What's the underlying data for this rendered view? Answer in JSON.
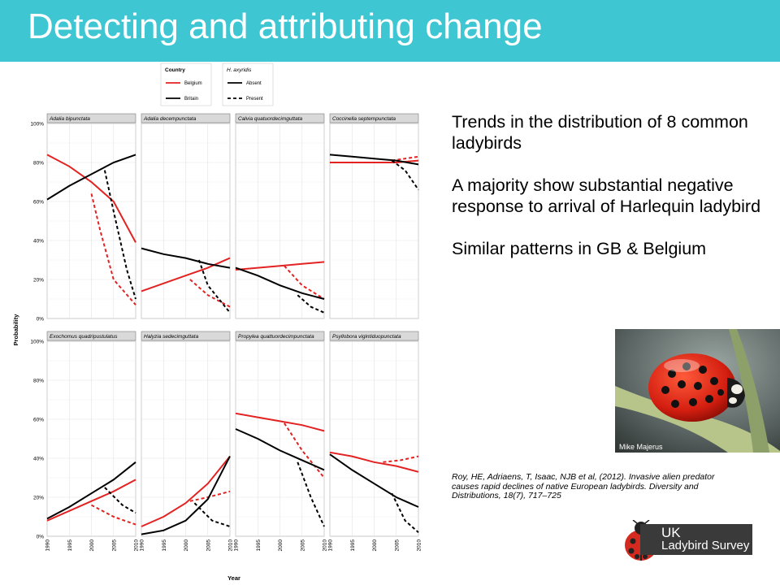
{
  "slide": {
    "title": "Detecting and attributing change"
  },
  "bullets": [
    "Trends in the distribution of 8 common ladybirds",
    "A majority show substantial negative response to arrival of Harlequin ladybird",
    "Similar patterns in GB & Belgium"
  ],
  "photo": {
    "credit": "Mike Majerus"
  },
  "citation": "Roy, HE, Adriaens, T, Isaac, NJB et al, (2012). Invasive alien predator causes rapid declines of native European ladybirds. Diversity and Distributions, 18(7), 717–725",
  "logo": {
    "line1": "UK",
    "line2": "Ladybird Survey"
  },
  "colors": {
    "title_bar": "#3fc6d3",
    "belgium": "#e32222",
    "britain": "#000000"
  },
  "chart_data": {
    "type": "line",
    "xlabel": "Year",
    "ylabel": "Probability",
    "x_ticks": [
      1990,
      1995,
      2000,
      2005,
      2010
    ],
    "y_ticks": [
      "0%",
      "20%",
      "40%",
      "60%",
      "80%",
      "100%"
    ],
    "ylim": [
      0,
      1
    ],
    "xlim": [
      1990,
      2010
    ],
    "grid": true,
    "legend": {
      "position": "top",
      "country_title": "Country",
      "country_items": [
        "Belgium",
        "Britain"
      ],
      "status_title": "H. axyridis",
      "status_items": [
        "Absent",
        "Present"
      ]
    },
    "panels": [
      {
        "name": "Adalia bipunctata",
        "belgium_absent": [
          [
            1990,
            0.84
          ],
          [
            1995,
            0.78
          ],
          [
            2000,
            0.7
          ],
          [
            2005,
            0.6
          ],
          [
            2010,
            0.39
          ]
        ],
        "belgium_present": [
          [
            2000,
            0.64
          ],
          [
            2002,
            0.45
          ],
          [
            2005,
            0.2
          ],
          [
            2010,
            0.07
          ]
        ],
        "britain_absent": [
          [
            1990,
            0.61
          ],
          [
            1995,
            0.68
          ],
          [
            2000,
            0.74
          ],
          [
            2005,
            0.8
          ],
          [
            2010,
            0.84
          ]
        ],
        "britain_present": [
          [
            2003,
            0.76
          ],
          [
            2005,
            0.55
          ],
          [
            2008,
            0.25
          ],
          [
            2010,
            0.1
          ]
        ]
      },
      {
        "name": "Adalia decempunctata",
        "belgium_absent": [
          [
            1990,
            0.14
          ],
          [
            1995,
            0.18
          ],
          [
            2000,
            0.22
          ],
          [
            2005,
            0.26
          ],
          [
            2010,
            0.31
          ]
        ],
        "belgium_present": [
          [
            2001,
            0.2
          ],
          [
            2005,
            0.12
          ],
          [
            2010,
            0.06
          ]
        ],
        "britain_absent": [
          [
            1990,
            0.36
          ],
          [
            1995,
            0.33
          ],
          [
            2000,
            0.31
          ],
          [
            2005,
            0.28
          ],
          [
            2010,
            0.26
          ]
        ],
        "britain_present": [
          [
            2003,
            0.3
          ],
          [
            2005,
            0.17
          ],
          [
            2010,
            0.03
          ]
        ]
      },
      {
        "name": "Calvia quatuordecimguttata",
        "belgium_absent": [
          [
            1990,
            0.25
          ],
          [
            1995,
            0.26
          ],
          [
            2000,
            0.27
          ],
          [
            2005,
            0.28
          ],
          [
            2010,
            0.29
          ]
        ],
        "belgium_present": [
          [
            2001,
            0.27
          ],
          [
            2005,
            0.17
          ],
          [
            2010,
            0.1
          ]
        ],
        "britain_absent": [
          [
            1990,
            0.26
          ],
          [
            1995,
            0.22
          ],
          [
            2000,
            0.17
          ],
          [
            2005,
            0.13
          ],
          [
            2010,
            0.1
          ]
        ],
        "britain_present": [
          [
            2004,
            0.12
          ],
          [
            2007,
            0.06
          ],
          [
            2010,
            0.03
          ]
        ]
      },
      {
        "name": "Coccinella septempunctata",
        "belgium_absent": [
          [
            1990,
            0.8
          ],
          [
            1995,
            0.8
          ],
          [
            2000,
            0.8
          ],
          [
            2005,
            0.8
          ],
          [
            2010,
            0.81
          ]
        ],
        "belgium_present": [
          [
            2004,
            0.81
          ],
          [
            2007,
            0.82
          ],
          [
            2010,
            0.83
          ]
        ],
        "britain_absent": [
          [
            1990,
            0.84
          ],
          [
            1995,
            0.83
          ],
          [
            2000,
            0.82
          ],
          [
            2005,
            0.81
          ],
          [
            2010,
            0.79
          ]
        ],
        "britain_present": [
          [
            2004,
            0.81
          ],
          [
            2007,
            0.76
          ],
          [
            2010,
            0.66
          ]
        ]
      },
      {
        "name": "Exochomus quadripustulatus",
        "belgium_absent": [
          [
            1990,
            0.08
          ],
          [
            1995,
            0.13
          ],
          [
            2000,
            0.18
          ],
          [
            2005,
            0.23
          ],
          [
            2010,
            0.29
          ]
        ],
        "belgium_present": [
          [
            2000,
            0.16
          ],
          [
            2005,
            0.1
          ],
          [
            2010,
            0.06
          ]
        ],
        "britain_absent": [
          [
            1990,
            0.09
          ],
          [
            1995,
            0.15
          ],
          [
            2000,
            0.22
          ],
          [
            2005,
            0.29
          ],
          [
            2010,
            0.38
          ]
        ],
        "britain_present": [
          [
            2003,
            0.25
          ],
          [
            2007,
            0.16
          ],
          [
            2010,
            0.12
          ]
        ]
      },
      {
        "name": "Halyzia sedecimguttata",
        "belgium_absent": [
          [
            1990,
            0.05
          ],
          [
            1995,
            0.1
          ],
          [
            2000,
            0.17
          ],
          [
            2005,
            0.27
          ],
          [
            2010,
            0.41
          ]
        ],
        "belgium_present": [
          [
            2001,
            0.18
          ],
          [
            2005,
            0.2
          ],
          [
            2010,
            0.23
          ]
        ],
        "britain_absent": [
          [
            1990,
            0.01
          ],
          [
            1995,
            0.03
          ],
          [
            2000,
            0.08
          ],
          [
            2005,
            0.19
          ],
          [
            2010,
            0.41
          ]
        ],
        "britain_present": [
          [
            2002,
            0.17
          ],
          [
            2006,
            0.08
          ],
          [
            2010,
            0.05
          ]
        ]
      },
      {
        "name": "Propylea quattuordecimpunctata",
        "belgium_absent": [
          [
            1990,
            0.63
          ],
          [
            1995,
            0.61
          ],
          [
            2000,
            0.59
          ],
          [
            2005,
            0.57
          ],
          [
            2010,
            0.54
          ]
        ],
        "belgium_present": [
          [
            2001,
            0.58
          ],
          [
            2005,
            0.44
          ],
          [
            2010,
            0.3
          ]
        ],
        "britain_absent": [
          [
            1990,
            0.55
          ],
          [
            1995,
            0.5
          ],
          [
            2000,
            0.44
          ],
          [
            2005,
            0.39
          ],
          [
            2010,
            0.34
          ]
        ],
        "britain_present": [
          [
            2004,
            0.38
          ],
          [
            2007,
            0.2
          ],
          [
            2010,
            0.05
          ]
        ]
      },
      {
        "name": "Psyllobora vigintiduopunctata",
        "belgium_absent": [
          [
            1990,
            0.43
          ],
          [
            1995,
            0.41
          ],
          [
            2000,
            0.38
          ],
          [
            2005,
            0.36
          ],
          [
            2010,
            0.33
          ]
        ],
        "belgium_present": [
          [
            2002,
            0.38
          ],
          [
            2006,
            0.39
          ],
          [
            2010,
            0.41
          ]
        ],
        "britain_absent": [
          [
            1990,
            0.42
          ],
          [
            1995,
            0.34
          ],
          [
            2000,
            0.27
          ],
          [
            2005,
            0.2
          ],
          [
            2010,
            0.15
          ]
        ],
        "britain_present": [
          [
            2004,
            0.22
          ],
          [
            2007,
            0.08
          ],
          [
            2010,
            0.02
          ]
        ]
      }
    ]
  }
}
